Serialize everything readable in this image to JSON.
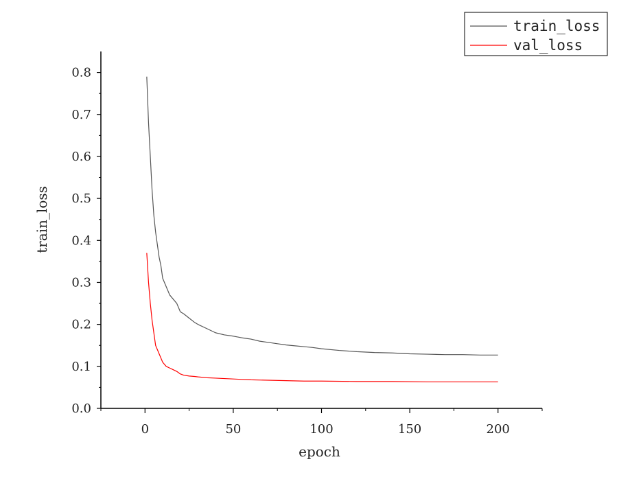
{
  "chart_data": {
    "type": "line",
    "xlabel": "epoch",
    "ylabel": "train_loss",
    "xlim": [
      -25,
      225
    ],
    "ylim": [
      0.0,
      0.85
    ],
    "x_ticks": [
      "0",
      "50",
      "100",
      "150",
      "200"
    ],
    "y_ticks": [
      "0.0",
      "0.1",
      "0.2",
      "0.3",
      "0.4",
      "0.5",
      "0.6",
      "0.7",
      "0.8"
    ],
    "legend": "top-right",
    "grid": false,
    "series": [
      {
        "name": "train_loss",
        "color": "#555555",
        "x": [
          1,
          2,
          3,
          4,
          5,
          6,
          7,
          8,
          9,
          10,
          12,
          14,
          16,
          18,
          20,
          22,
          25,
          28,
          30,
          35,
          40,
          45,
          50,
          55,
          60,
          65,
          70,
          75,
          80,
          85,
          90,
          95,
          100,
          110,
          120,
          130,
          140,
          150,
          160,
          170,
          180,
          190,
          200
        ],
        "values": [
          0.79,
          0.68,
          0.6,
          0.52,
          0.46,
          0.42,
          0.39,
          0.36,
          0.34,
          0.31,
          0.29,
          0.27,
          0.26,
          0.25,
          0.23,
          0.225,
          0.215,
          0.205,
          0.2,
          0.19,
          0.18,
          0.175,
          0.172,
          0.168,
          0.165,
          0.16,
          0.157,
          0.154,
          0.151,
          0.149,
          0.147,
          0.145,
          0.142,
          0.138,
          0.135,
          0.133,
          0.132,
          0.13,
          0.129,
          0.128,
          0.128,
          0.127,
          0.127
        ]
      },
      {
        "name": "val_loss",
        "color": "#ff0000",
        "x": [
          1,
          2,
          3,
          4,
          5,
          6,
          7,
          8,
          9,
          10,
          12,
          14,
          16,
          18,
          20,
          22,
          25,
          28,
          30,
          35,
          40,
          45,
          50,
          55,
          60,
          70,
          80,
          90,
          100,
          120,
          140,
          160,
          180,
          200
        ],
        "values": [
          0.37,
          0.3,
          0.25,
          0.21,
          0.18,
          0.15,
          0.14,
          0.13,
          0.12,
          0.11,
          0.1,
          0.096,
          0.092,
          0.088,
          0.082,
          0.079,
          0.077,
          0.076,
          0.075,
          0.073,
          0.072,
          0.071,
          0.07,
          0.069,
          0.068,
          0.067,
          0.066,
          0.065,
          0.065,
          0.064,
          0.064,
          0.063,
          0.063,
          0.063
        ]
      }
    ]
  }
}
